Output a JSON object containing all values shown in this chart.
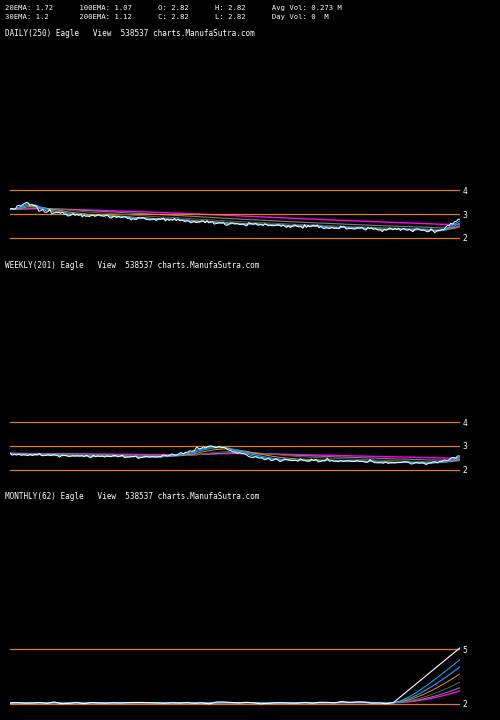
{
  "background_color": "#000000",
  "text_color": "#ffffff",
  "header_lines": [
    "20EMA: 1.72      100EMA: 1.07      O: 2.82      H: 2.82      Avg Vol: 0.273 M",
    "30EMA: 1.2       200EMA: 1.12      C: 2.82      L: 2.82      Day Vol: 0  M"
  ],
  "header_fontsize": 5.2,
  "label_fontsize": 5.5,
  "panels": [
    {
      "label": "DAILY(250) Eagle   View  538537 charts.ManufaSutra.com",
      "ylim": [
        1.5,
        4.8
      ],
      "yticks": [
        2,
        3,
        4
      ],
      "hlines": [
        {
          "y": 4.0,
          "color": "#ff8c00",
          "lw": 0.9
        },
        {
          "y": 3.0,
          "color": "#ff8c00",
          "lw": 0.9
        },
        {
          "y": 2.0,
          "color": "#ff8c00",
          "lw": 0.9
        }
      ]
    },
    {
      "label": "WEEKLY(201) Eagle   View  538537 charts.ManufaSutra.com",
      "ylim": [
        1.5,
        4.8
      ],
      "yticks": [
        2,
        3,
        4
      ],
      "hlines": [
        {
          "y": 4.0,
          "color": "#ff8c00",
          "lw": 0.9
        },
        {
          "y": 3.0,
          "color": "#ff8c00",
          "lw": 0.9
        },
        {
          "y": 2.0,
          "color": "#ff8c00",
          "lw": 0.9
        }
      ]
    },
    {
      "label": "MONTHLY(62) Eagle   View  538537 charts.ManufaSutra.com",
      "ylim": [
        1.5,
        5.8
      ],
      "yticks": [
        2,
        5
      ],
      "hlines": [
        {
          "y": 5.0,
          "color": "#ff8c00",
          "lw": 0.9
        },
        {
          "y": 2.0,
          "color": "#ff8c00",
          "lw": 0.9
        }
      ]
    }
  ],
  "line_colors": {
    "price": "#ffffff",
    "ema_fast": "#1e90ff",
    "ema_mid": "#00bfff",
    "ema_slow": "#808080",
    "ema_slowest": "#ff00ff",
    "ema_extra1": "#808040",
    "ema_extra2": "#404040"
  }
}
